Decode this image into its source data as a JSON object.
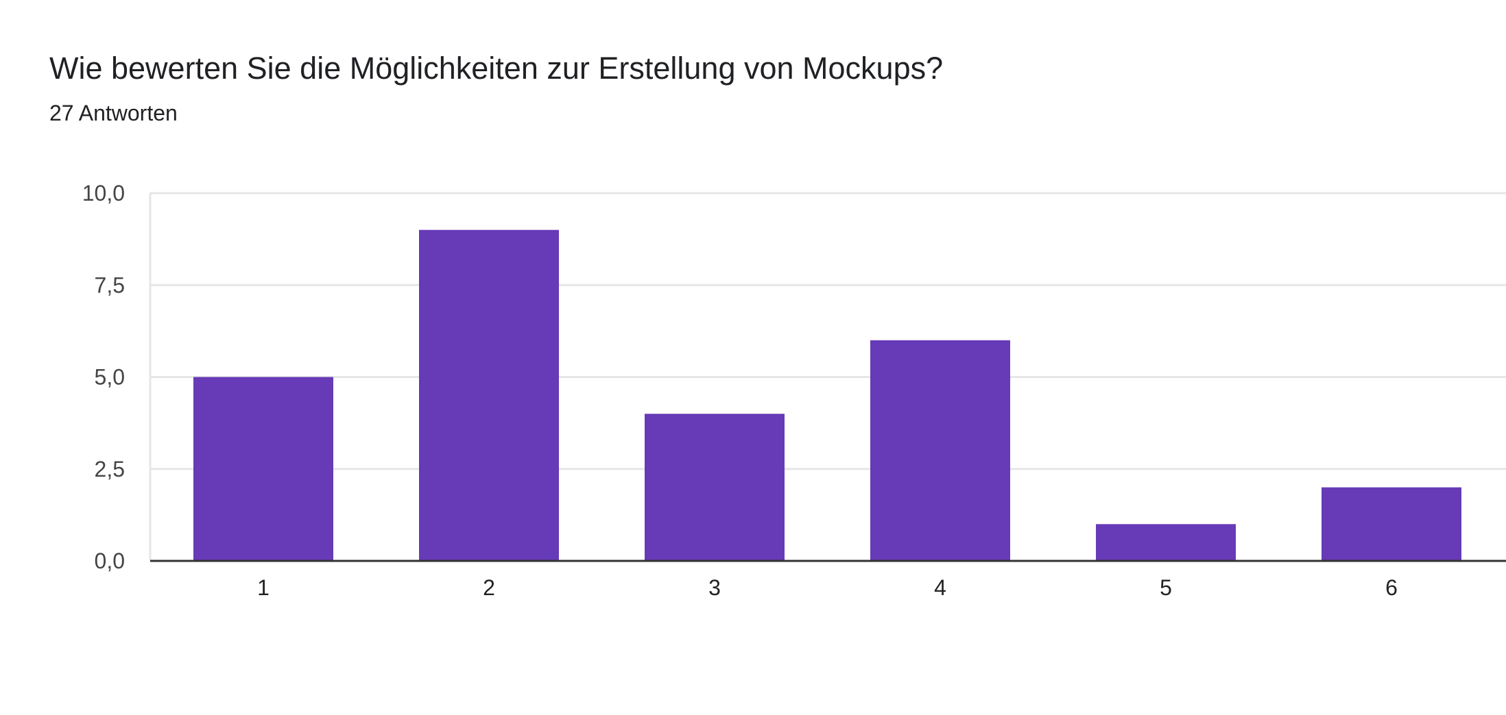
{
  "header": {
    "title": "Wie bewerten Sie die Möglichkeiten zur Erstellung von Mockups?",
    "subtitle": "27 Antworten"
  },
  "colors": {
    "bar": "#673ab7",
    "grid": "#e6e6e6",
    "axis": "#333333"
  },
  "chart_data": {
    "type": "bar",
    "categories": [
      "1",
      "2",
      "3",
      "4",
      "5",
      "6"
    ],
    "values": [
      5,
      9,
      4,
      6,
      1,
      2
    ],
    "title": "",
    "xlabel": "",
    "ylabel": "",
    "ylim": [
      0,
      10
    ],
    "yticks": [
      "0,0",
      "2,5",
      "5,0",
      "7,5",
      "10,0"
    ],
    "ytick_values": [
      0,
      2.5,
      5,
      7.5,
      10
    ],
    "grid": true,
    "legend": "none"
  }
}
